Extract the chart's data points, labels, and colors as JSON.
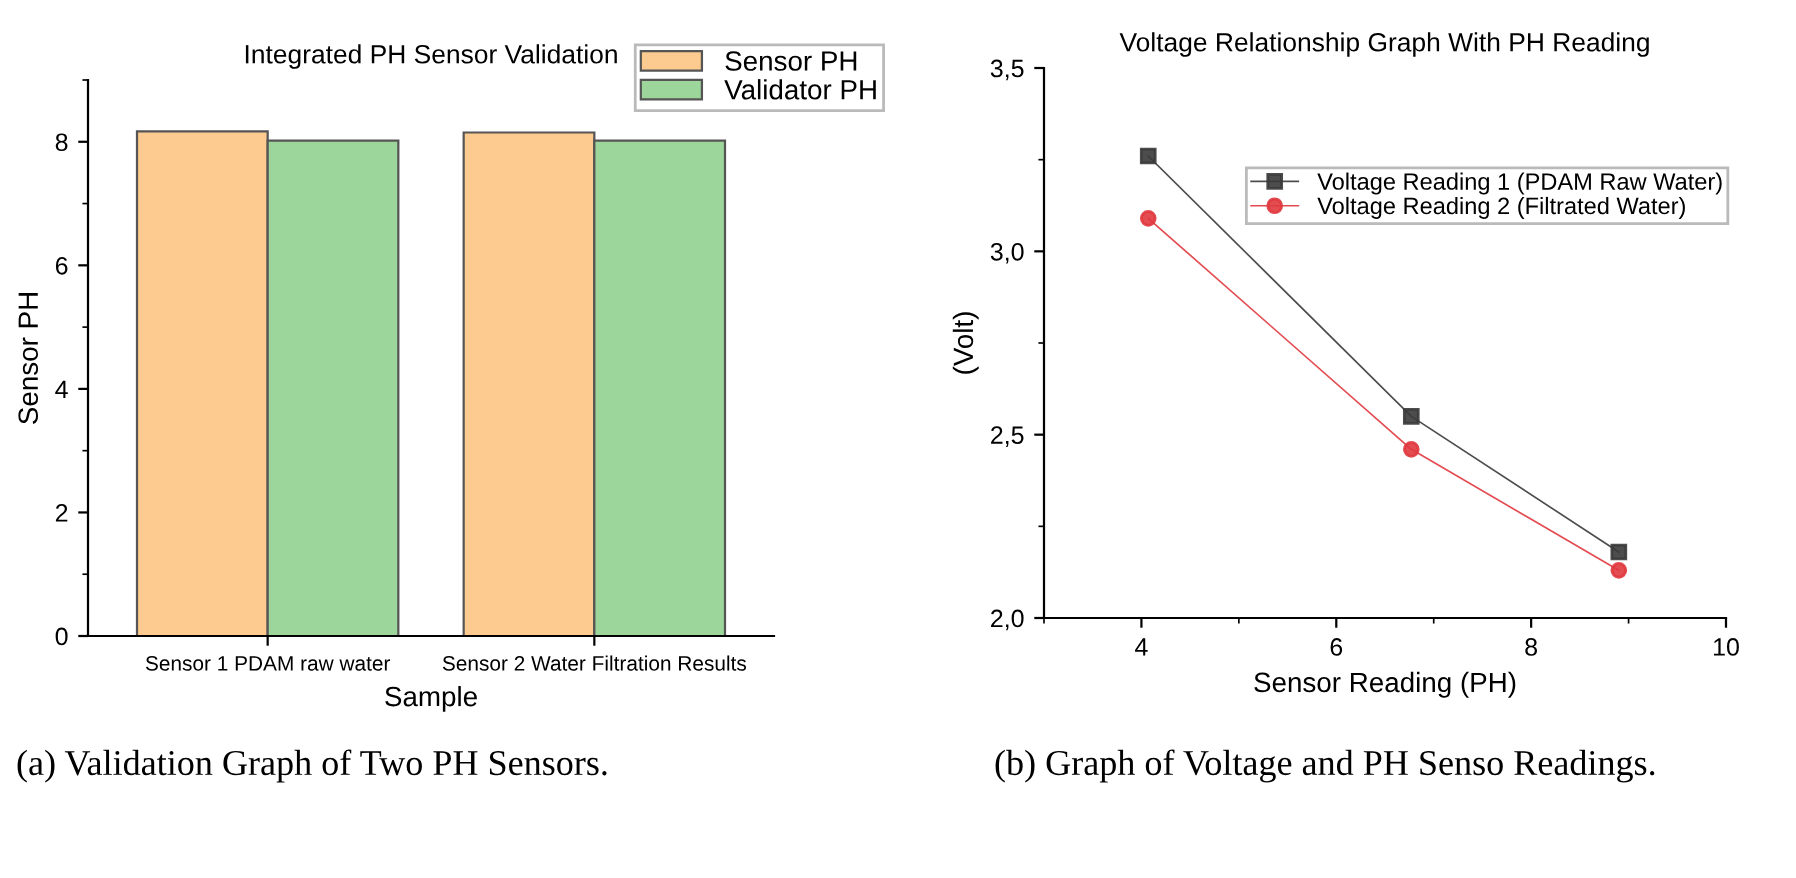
{
  "chart_data": [
    {
      "type": "bar",
      "title": "Integrated PH Sensor Validation",
      "xlabel": "Sample",
      "ylabel": "Sensor PH",
      "categories": [
        "Sensor 1 PDAM raw water",
        "Sensor 2 Water Filtration Results"
      ],
      "series": [
        {
          "name": "Sensor PH",
          "color": "#fdcb8f",
          "values": [
            8.17,
            8.15
          ]
        },
        {
          "name": "Validator PH",
          "color": "#9dd69a",
          "values": [
            8.02,
            8.02
          ]
        }
      ],
      "ylim": [
        0,
        9
      ],
      "yticks": [
        0,
        2,
        4,
        6,
        8
      ],
      "grid": false,
      "legend": "top right",
      "annotations": [
        "(a) Validation Graph of Two PH Sensors."
      ]
    },
    {
      "type": "line",
      "title": "Voltage Relationship Graph With PH Reading",
      "xlabel": "Sensor Reading (PH)",
      "ylabel": "(Volt)",
      "x": [
        4.07,
        6.77,
        8.9
      ],
      "series": [
        {
          "name": "Voltage Reading 1 (PDAM Raw Water)",
          "color": "#3a3a3a",
          "marker": "square",
          "values": [
            3.26,
            2.55,
            2.18
          ]
        },
        {
          "name": "Voltage Reading 2 (Filtrated Water)",
          "color": "#e0393e",
          "marker": "circle",
          "values": [
            3.09,
            2.46,
            2.13
          ]
        }
      ],
      "xlim": [
        3,
        10
      ],
      "xticks": [
        4,
        6,
        8,
        10
      ],
      "ylim": [
        2.0,
        3.5
      ],
      "yticks": [
        {
          "value": 2.0,
          "label": "2,0"
        },
        {
          "value": 2.5,
          "label": "2,5"
        },
        {
          "value": 3.0,
          "label": "3,0"
        },
        {
          "value": 3.5,
          "label": "3,5"
        }
      ],
      "grid": false,
      "legend": "top right",
      "annotations": [
        "(b) Graph of Voltage and PH Senso Readings."
      ]
    }
  ]
}
